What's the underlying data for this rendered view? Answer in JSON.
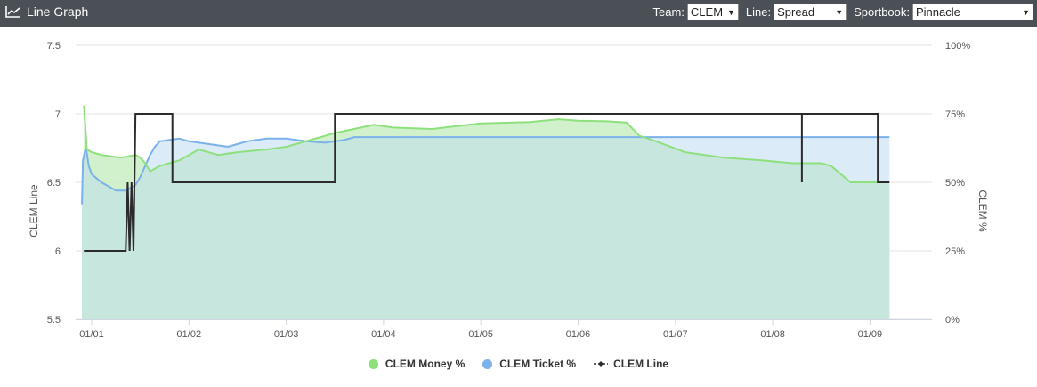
{
  "header": {
    "title": "Line Graph",
    "team_label": "Team:",
    "team_value": "CLEM",
    "line_label": "Line:",
    "line_value": "Spread",
    "book_label": "Sportbook:",
    "book_value": "Pinnacle"
  },
  "colors": {
    "money": "#8ee07c",
    "money_fill": "#c9efc4",
    "ticket": "#7bb2ea",
    "ticket_fill": "#d6e7f7",
    "overlap_fill": "#c7e6de",
    "line": "#2b2b2b",
    "header_bg": "#4b4f56"
  },
  "chart_data": {
    "type": "line",
    "title": "",
    "ylabel": "CLEM Line",
    "y2label": "CLEM %",
    "ylim": [
      5.5,
      7.5
    ],
    "y2lim": [
      0,
      100
    ],
    "y_ticks": [
      7.5,
      7,
      6.5,
      6,
      5.5
    ],
    "y2_ticks": [
      "100%",
      "75%",
      "50%",
      "25%",
      "0%"
    ],
    "x_ticks": [
      "01/01",
      "01/02",
      "01/03",
      "01/04",
      "01/05",
      "01/06",
      "01/07",
      "01/08",
      "01/09"
    ],
    "xlim": [
      -0.1,
      8.35
    ],
    "grid": true,
    "legend": "bottom",
    "series": [
      {
        "name": "CLEM Money %",
        "axis": "right",
        "points": [
          [
            -0.08,
            78
          ],
          [
            -0.07,
            73
          ],
          [
            -0.05,
            62
          ],
          [
            0,
            61
          ],
          [
            0.1,
            60
          ],
          [
            0.3,
            59
          ],
          [
            0.45,
            60
          ],
          [
            0.5,
            59
          ],
          [
            0.55,
            57
          ],
          [
            0.6,
            54
          ],
          [
            0.7,
            56
          ],
          [
            0.9,
            58
          ],
          [
            1,
            60
          ],
          [
            1.1,
            62
          ],
          [
            1.3,
            60
          ],
          [
            1.5,
            61
          ],
          [
            1.8,
            62
          ],
          [
            2,
            63
          ],
          [
            2.2,
            65
          ],
          [
            2.5,
            68
          ],
          [
            2.9,
            71
          ],
          [
            3.1,
            70
          ],
          [
            3.5,
            69.5
          ],
          [
            4,
            71.5
          ],
          [
            4.5,
            72
          ],
          [
            4.8,
            73
          ],
          [
            5,
            72.5
          ],
          [
            5.3,
            72.3
          ],
          [
            5.5,
            71.8
          ],
          [
            5.63,
            67
          ],
          [
            5.8,
            65
          ],
          [
            6.1,
            61
          ],
          [
            6.5,
            59
          ],
          [
            6.9,
            58
          ],
          [
            7.2,
            57
          ],
          [
            7.5,
            57
          ],
          [
            7.6,
            56
          ],
          [
            7.8,
            50
          ],
          [
            8.0,
            50
          ],
          [
            8.1,
            50
          ],
          [
            8.2,
            50
          ]
        ]
      },
      {
        "name": "CLEM Ticket %",
        "axis": "right",
        "points": [
          [
            -0.1,
            42
          ],
          [
            -0.09,
            58
          ],
          [
            -0.06,
            63
          ],
          [
            -0.03,
            56
          ],
          [
            0,
            53
          ],
          [
            0.1,
            50
          ],
          [
            0.25,
            47
          ],
          [
            0.35,
            47
          ],
          [
            0.45,
            49
          ],
          [
            0.5,
            52
          ],
          [
            0.6,
            60
          ],
          [
            0.65,
            63
          ],
          [
            0.7,
            65
          ],
          [
            0.9,
            66
          ],
          [
            1,
            65
          ],
          [
            1.2,
            64
          ],
          [
            1.4,
            63
          ],
          [
            1.5,
            64
          ],
          [
            1.6,
            65
          ],
          [
            1.8,
            66
          ],
          [
            2,
            66
          ],
          [
            2.2,
            65
          ],
          [
            2.4,
            64.5
          ],
          [
            2.6,
            65.5
          ],
          [
            2.7,
            66.5
          ],
          [
            3,
            66.5
          ],
          [
            3.5,
            66.5
          ],
          [
            4,
            66.5
          ],
          [
            5,
            66.5
          ],
          [
            6,
            66.5
          ],
          [
            7,
            66.5
          ],
          [
            8.2,
            66.5
          ]
        ]
      },
      {
        "name": "CLEM Line",
        "axis": "left",
        "step": true,
        "points": [
          [
            -0.08,
            6
          ],
          [
            0.35,
            6
          ],
          [
            0.37,
            6.5
          ],
          [
            0.39,
            6
          ],
          [
            0.41,
            6.5
          ],
          [
            0.43,
            6
          ],
          [
            0.45,
            7
          ],
          [
            0.83,
            7
          ],
          [
            0.83,
            6.5
          ],
          [
            2.5,
            6.5
          ],
          [
            2.5,
            7
          ],
          [
            7.3,
            7
          ],
          [
            7.3,
            6.5
          ],
          [
            7.3,
            7
          ],
          [
            8.08,
            7
          ],
          [
            8.08,
            6.5
          ],
          [
            8.2,
            6.5
          ]
        ]
      }
    ]
  }
}
